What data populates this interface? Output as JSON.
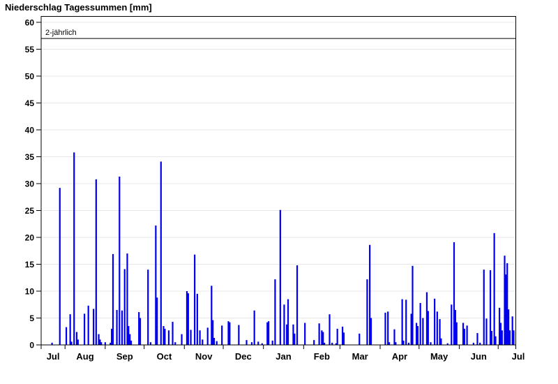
{
  "chart_data": {
    "type": "bar",
    "title": "Niederschlag Tagessummen [mm]",
    "ylabel": "",
    "xlabel": "",
    "ylim": [
      0,
      61.1
    ],
    "yticks": [
      0,
      5,
      10,
      15,
      20,
      25,
      30,
      35,
      40,
      45,
      50,
      55,
      60
    ],
    "grid": true,
    "grid_color": "#e7e7e7",
    "axis_color": "#000000",
    "bar_color": "#0000ee",
    "background": "#ffffff",
    "threshold": {
      "label": "2-jährlich",
      "value": 57
    },
    "x_axis_note": "hydrological year, axis starts mid-July and ends mid-July",
    "months": [
      {
        "label": "Jul",
        "days": 31
      },
      {
        "label": "Aug",
        "days": 31
      },
      {
        "label": "Sep",
        "days": 30
      },
      {
        "label": "Oct",
        "days": 31
      },
      {
        "label": "Nov",
        "days": 30
      },
      {
        "label": "Dec",
        "days": 31
      },
      {
        "label": "Jan",
        "days": 31
      },
      {
        "label": "Feb",
        "days": 28
      },
      {
        "label": "Mar",
        "days": 31
      },
      {
        "label": "Apr",
        "days": 30
      },
      {
        "label": "May",
        "days": 31
      },
      {
        "label": "Jun",
        "days": 30
      },
      {
        "label": "Jul",
        "days": 31
      }
    ],
    "bars": [
      [
        0,
        22,
        0.4
      ],
      [
        0,
        28,
        29.2
      ],
      [
        1,
        2,
        3.3
      ],
      [
        1,
        5,
        5.7
      ],
      [
        1,
        6,
        0.6
      ],
      [
        1,
        8,
        35.8
      ],
      [
        1,
        10,
        2.4
      ],
      [
        1,
        11,
        1.0
      ],
      [
        1,
        16,
        5.8
      ],
      [
        1,
        19,
        7.3
      ],
      [
        1,
        23,
        6.7
      ],
      [
        1,
        25,
        30.8
      ],
      [
        1,
        27,
        2.0
      ],
      [
        1,
        28,
        1.0
      ],
      [
        1,
        29,
        0.5
      ],
      [
        2,
        1,
        0.5
      ],
      [
        2,
        5,
        0.4
      ],
      [
        2,
        6,
        3.0
      ],
      [
        2,
        7,
        16.9
      ],
      [
        2,
        10,
        6.5
      ],
      [
        2,
        12,
        31.3
      ],
      [
        2,
        14,
        6.4
      ],
      [
        2,
        16,
        14.1
      ],
      [
        2,
        18,
        17.0
      ],
      [
        2,
        19,
        3.5
      ],
      [
        2,
        20,
        2.0
      ],
      [
        2,
        21,
        0.8
      ],
      [
        2,
        27,
        6.1
      ],
      [
        2,
        28,
        5.0
      ],
      [
        3,
        4,
        14.0
      ],
      [
        3,
        6,
        0.5
      ],
      [
        3,
        10,
        22.2
      ],
      [
        3,
        11,
        8.8
      ],
      [
        3,
        14,
        34.1
      ],
      [
        3,
        16,
        3.5
      ],
      [
        3,
        17,
        3.0
      ],
      [
        3,
        20,
        2.7
      ],
      [
        3,
        23,
        4.3
      ],
      [
        3,
        25,
        0.5
      ],
      [
        3,
        30,
        2.0
      ],
      [
        4,
        3,
        10.0
      ],
      [
        4,
        4,
        9.6
      ],
      [
        4,
        6,
        2.8
      ],
      [
        4,
        9,
        16.8
      ],
      [
        4,
        11,
        9.5
      ],
      [
        4,
        13,
        2.7
      ],
      [
        4,
        15,
        1.0
      ],
      [
        4,
        19,
        3.2
      ],
      [
        4,
        22,
        11.0
      ],
      [
        4,
        23,
        4.6
      ],
      [
        4,
        24,
        1.3
      ],
      [
        4,
        26,
        0.7
      ],
      [
        4,
        30,
        3.6
      ],
      [
        5,
        5,
        4.4
      ],
      [
        5,
        6,
        4.2
      ],
      [
        5,
        13,
        3.7
      ],
      [
        5,
        19,
        0.9
      ],
      [
        5,
        23,
        0.5
      ],
      [
        5,
        25,
        6.4
      ],
      [
        5,
        28,
        0.6
      ],
      [
        5,
        31,
        0.3
      ],
      [
        6,
        4,
        4.2
      ],
      [
        6,
        5,
        4.4
      ],
      [
        6,
        8,
        0.8
      ],
      [
        6,
        10,
        12.2
      ],
      [
        6,
        14,
        25.1
      ],
      [
        6,
        17,
        7.5
      ],
      [
        6,
        19,
        3.8
      ],
      [
        6,
        20,
        8.5
      ],
      [
        6,
        24,
        3.8
      ],
      [
        6,
        25,
        2.1
      ],
      [
        6,
        27,
        14.8
      ],
      [
        7,
        2,
        4.1
      ],
      [
        7,
        9,
        0.9
      ],
      [
        7,
        13,
        4.0
      ],
      [
        7,
        15,
        2.7
      ],
      [
        7,
        16,
        2.4
      ],
      [
        7,
        17,
        0.4
      ],
      [
        7,
        21,
        5.7
      ],
      [
        7,
        23,
        0.4
      ],
      [
        7,
        26,
        0.3
      ],
      [
        7,
        27,
        3.0
      ],
      [
        8,
        3,
        3.4
      ],
      [
        8,
        4,
        2.3
      ],
      [
        8,
        16,
        2.1
      ],
      [
        8,
        22,
        12.2
      ],
      [
        8,
        24,
        18.6
      ],
      [
        8,
        25,
        5.0
      ],
      [
        9,
        5,
        6.0
      ],
      [
        9,
        7,
        6.2
      ],
      [
        9,
        8,
        0.5
      ],
      [
        9,
        12,
        2.9
      ],
      [
        9,
        13,
        0.5
      ],
      [
        9,
        18,
        8.5
      ],
      [
        9,
        19,
        0.8
      ],
      [
        9,
        21,
        8.4
      ],
      [
        9,
        23,
        0.4
      ],
      [
        9,
        25,
        5.8
      ],
      [
        9,
        26,
        14.7
      ],
      [
        9,
        29,
        4.1
      ],
      [
        9,
        30,
        3.5
      ],
      [
        10,
        2,
        7.8
      ],
      [
        10,
        4,
        5.0
      ],
      [
        10,
        7,
        9.8
      ],
      [
        10,
        8,
        6.3
      ],
      [
        10,
        10,
        0.5
      ],
      [
        10,
        13,
        8.6
      ],
      [
        10,
        15,
        6.2
      ],
      [
        10,
        17,
        4.8
      ],
      [
        10,
        18,
        1.2
      ],
      [
        10,
        23,
        0.3
      ],
      [
        10,
        26,
        7.5
      ],
      [
        10,
        28,
        19.1
      ],
      [
        10,
        29,
        6.5
      ],
      [
        10,
        30,
        4.2
      ],
      [
        11,
        4,
        4.1
      ],
      [
        11,
        5,
        3.0
      ],
      [
        11,
        7,
        3.6
      ],
      [
        11,
        12,
        0.4
      ],
      [
        11,
        15,
        2.2
      ],
      [
        11,
        17,
        0.4
      ],
      [
        11,
        20,
        14.0
      ],
      [
        11,
        22,
        4.9
      ],
      [
        11,
        25,
        13.9
      ],
      [
        11,
        26,
        2.6
      ],
      [
        11,
        28,
        20.8
      ],
      [
        11,
        29,
        1.6
      ],
      [
        12,
        2,
        6.9
      ],
      [
        12,
        3,
        4.1
      ],
      [
        12,
        4,
        2.7
      ],
      [
        12,
        6,
        16.6
      ],
      [
        12,
        7,
        13.1
      ],
      [
        12,
        8,
        15.2
      ],
      [
        12,
        9,
        6.6
      ],
      [
        12,
        10,
        2.7
      ],
      [
        12,
        12,
        5.3
      ],
      [
        12,
        13,
        2.7
      ]
    ]
  }
}
